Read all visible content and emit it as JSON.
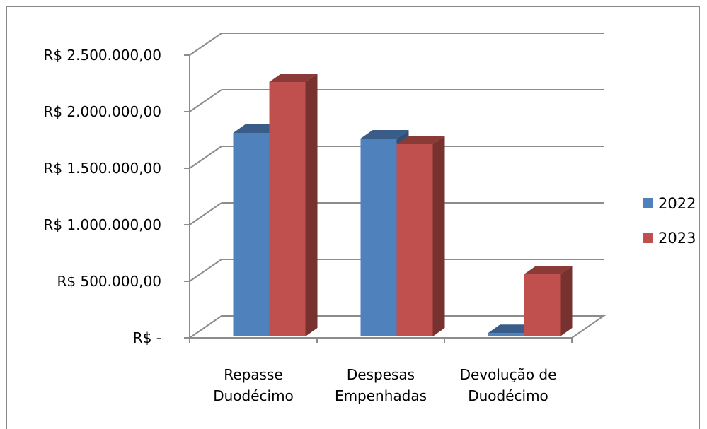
{
  "chart_data": {
    "type": "bar",
    "style": "3d-clustered-column",
    "categories": [
      [
        "Repasse",
        "Duodécimo"
      ],
      [
        "Despesas",
        "Empenhadas"
      ],
      [
        "Devolução de",
        "Duodécimo"
      ]
    ],
    "series": [
      {
        "name": "2022",
        "values": [
          1800000,
          1750000,
          30000
        ],
        "color": "#4f81bd"
      },
      {
        "name": "2023",
        "values": [
          2250000,
          1700000,
          550000
        ],
        "color": "#c0504d"
      }
    ],
    "ylim": [
      0,
      2500000
    ],
    "yticks": [
      0,
      500000,
      1000000,
      1500000,
      2000000,
      2500000
    ],
    "ytick_labels": [
      "R$ -",
      "R$ 500.000,00",
      "R$ 1.000.000,00",
      "R$ 1.500.000,00",
      "R$ 2.000.000,00",
      "R$ 2.500.000,00"
    ],
    "grid": true,
    "legend": "right"
  }
}
